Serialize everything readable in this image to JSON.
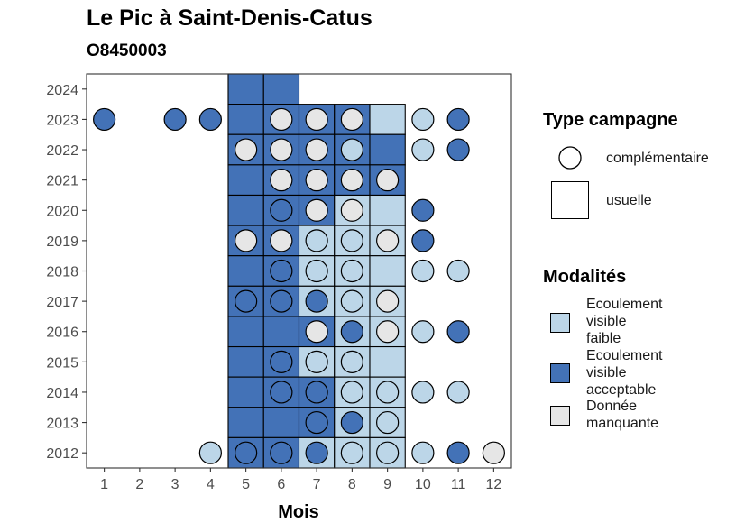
{
  "header": {
    "title": "Le Pic à Saint-Denis-Catus",
    "subtitle": "O8450003"
  },
  "legend": {
    "type_title": "Type campagne",
    "type_items": [
      {
        "label": "complémentaire",
        "shape": "circle"
      },
      {
        "label": "usuelle",
        "shape": "square"
      }
    ],
    "mod_title": "Modalités",
    "mod_items": [
      {
        "label": "Ecoulement\nvisible\nfaible",
        "key": "faible",
        "color": "#bcd6e8"
      },
      {
        "label": "Ecoulement\nvisible\nacceptable",
        "key": "acceptable",
        "color": "#4372b7"
      },
      {
        "label": "Donnée\nmanquante",
        "key": "manquante",
        "color": "#e6e6e6"
      }
    ]
  },
  "chart_data": {
    "type": "heatmap",
    "xlabel": "Mois",
    "ylabel": "",
    "x_ticks": [
      1,
      2,
      3,
      4,
      5,
      6,
      7,
      8,
      9,
      10,
      11,
      12
    ],
    "y_ticks": [
      2012,
      2013,
      2014,
      2015,
      2016,
      2017,
      2018,
      2019,
      2020,
      2021,
      2022,
      2023,
      2024
    ],
    "xlim": [
      0.5,
      12.5
    ],
    "ylim": [
      2011.5,
      2024.5
    ],
    "colors": {
      "faible": "#bcd6e8",
      "acceptable": "#4372b7",
      "manquante": "#e6e6e6"
    },
    "usuelle": [
      {
        "year": 2024,
        "month": 5,
        "value": "acceptable"
      },
      {
        "year": 2024,
        "month": 6,
        "value": "acceptable"
      },
      {
        "year": 2023,
        "month": 5,
        "value": "acceptable"
      },
      {
        "year": 2023,
        "month": 6,
        "value": "acceptable"
      },
      {
        "year": 2023,
        "month": 7,
        "value": "acceptable"
      },
      {
        "year": 2023,
        "month": 8,
        "value": "acceptable"
      },
      {
        "year": 2023,
        "month": 9,
        "value": "faible"
      },
      {
        "year": 2022,
        "month": 5,
        "value": "acceptable"
      },
      {
        "year": 2022,
        "month": 6,
        "value": "acceptable"
      },
      {
        "year": 2022,
        "month": 7,
        "value": "acceptable"
      },
      {
        "year": 2022,
        "month": 8,
        "value": "acceptable"
      },
      {
        "year": 2022,
        "month": 9,
        "value": "acceptable"
      },
      {
        "year": 2021,
        "month": 5,
        "value": "acceptable"
      },
      {
        "year": 2021,
        "month": 6,
        "value": "acceptable"
      },
      {
        "year": 2021,
        "month": 7,
        "value": "acceptable"
      },
      {
        "year": 2021,
        "month": 8,
        "value": "acceptable"
      },
      {
        "year": 2021,
        "month": 9,
        "value": "acceptable"
      },
      {
        "year": 2020,
        "month": 5,
        "value": "acceptable"
      },
      {
        "year": 2020,
        "month": 6,
        "value": "acceptable"
      },
      {
        "year": 2020,
        "month": 7,
        "value": "acceptable"
      },
      {
        "year": 2020,
        "month": 8,
        "value": "faible"
      },
      {
        "year": 2020,
        "month": 9,
        "value": "faible"
      },
      {
        "year": 2019,
        "month": 5,
        "value": "acceptable"
      },
      {
        "year": 2019,
        "month": 6,
        "value": "acceptable"
      },
      {
        "year": 2019,
        "month": 7,
        "value": "faible"
      },
      {
        "year": 2019,
        "month": 8,
        "value": "faible"
      },
      {
        "year": 2019,
        "month": 9,
        "value": "faible"
      },
      {
        "year": 2018,
        "month": 5,
        "value": "acceptable"
      },
      {
        "year": 2018,
        "month": 6,
        "value": "acceptable"
      },
      {
        "year": 2018,
        "month": 7,
        "value": "faible"
      },
      {
        "year": 2018,
        "month": 8,
        "value": "faible"
      },
      {
        "year": 2018,
        "month": 9,
        "value": "faible"
      },
      {
        "year": 2017,
        "month": 5,
        "value": "acceptable"
      },
      {
        "year": 2017,
        "month": 6,
        "value": "acceptable"
      },
      {
        "year": 2017,
        "month": 7,
        "value": "faible"
      },
      {
        "year": 2017,
        "month": 8,
        "value": "faible"
      },
      {
        "year": 2017,
        "month": 9,
        "value": "faible"
      },
      {
        "year": 2016,
        "month": 5,
        "value": "acceptable"
      },
      {
        "year": 2016,
        "month": 6,
        "value": "acceptable"
      },
      {
        "year": 2016,
        "month": 7,
        "value": "acceptable"
      },
      {
        "year": 2016,
        "month": 8,
        "value": "faible"
      },
      {
        "year": 2016,
        "month": 9,
        "value": "faible"
      },
      {
        "year": 2015,
        "month": 5,
        "value": "acceptable"
      },
      {
        "year": 2015,
        "month": 6,
        "value": "acceptable"
      },
      {
        "year": 2015,
        "month": 7,
        "value": "faible"
      },
      {
        "year": 2015,
        "month": 8,
        "value": "faible"
      },
      {
        "year": 2015,
        "month": 9,
        "value": "faible"
      },
      {
        "year": 2014,
        "month": 5,
        "value": "acceptable"
      },
      {
        "year": 2014,
        "month": 6,
        "value": "acceptable"
      },
      {
        "year": 2014,
        "month": 7,
        "value": "acceptable"
      },
      {
        "year": 2014,
        "month": 8,
        "value": "faible"
      },
      {
        "year": 2014,
        "month": 9,
        "value": "faible"
      },
      {
        "year": 2013,
        "month": 5,
        "value": "acceptable"
      },
      {
        "year": 2013,
        "month": 6,
        "value": "acceptable"
      },
      {
        "year": 2013,
        "month": 7,
        "value": "acceptable"
      },
      {
        "year": 2013,
        "month": 8,
        "value": "faible"
      },
      {
        "year": 2013,
        "month": 9,
        "value": "faible"
      },
      {
        "year": 2012,
        "month": 5,
        "value": "acceptable"
      },
      {
        "year": 2012,
        "month": 6,
        "value": "acceptable"
      },
      {
        "year": 2012,
        "month": 7,
        "value": "faible"
      },
      {
        "year": 2012,
        "month": 8,
        "value": "faible"
      },
      {
        "year": 2012,
        "month": 9,
        "value": "faible"
      }
    ],
    "complementaire": [
      {
        "year": 2023,
        "month": 1,
        "value": "acceptable"
      },
      {
        "year": 2023,
        "month": 3,
        "value": "acceptable"
      },
      {
        "year": 2023,
        "month": 4,
        "value": "acceptable"
      },
      {
        "year": 2023,
        "month": 6,
        "value": "manquante"
      },
      {
        "year": 2023,
        "month": 7,
        "value": "manquante"
      },
      {
        "year": 2023,
        "month": 8,
        "value": "manquante"
      },
      {
        "year": 2023,
        "month": 10,
        "value": "faible"
      },
      {
        "year": 2023,
        "month": 11,
        "value": "acceptable"
      },
      {
        "year": 2022,
        "month": 5,
        "value": "manquante"
      },
      {
        "year": 2022,
        "month": 6,
        "value": "manquante"
      },
      {
        "year": 2022,
        "month": 7,
        "value": "manquante"
      },
      {
        "year": 2022,
        "month": 8,
        "value": "faible"
      },
      {
        "year": 2022,
        "month": 10,
        "value": "faible"
      },
      {
        "year": 2022,
        "month": 11,
        "value": "acceptable"
      },
      {
        "year": 2021,
        "month": 6,
        "value": "manquante"
      },
      {
        "year": 2021,
        "month": 7,
        "value": "manquante"
      },
      {
        "year": 2021,
        "month": 8,
        "value": "manquante"
      },
      {
        "year": 2021,
        "month": 9,
        "value": "manquante"
      },
      {
        "year": 2020,
        "month": 6,
        "value": "acceptable"
      },
      {
        "year": 2020,
        "month": 7,
        "value": "manquante"
      },
      {
        "year": 2020,
        "month": 8,
        "value": "manquante"
      },
      {
        "year": 2020,
        "month": 10,
        "value": "acceptable"
      },
      {
        "year": 2019,
        "month": 5,
        "value": "manquante"
      },
      {
        "year": 2019,
        "month": 6,
        "value": "manquante"
      },
      {
        "year": 2019,
        "month": 7,
        "value": "faible"
      },
      {
        "year": 2019,
        "month": 8,
        "value": "faible"
      },
      {
        "year": 2019,
        "month": 9,
        "value": "manquante"
      },
      {
        "year": 2019,
        "month": 10,
        "value": "acceptable"
      },
      {
        "year": 2018,
        "month": 6,
        "value": "acceptable"
      },
      {
        "year": 2018,
        "month": 7,
        "value": "faible"
      },
      {
        "year": 2018,
        "month": 8,
        "value": "faible"
      },
      {
        "year": 2018,
        "month": 10,
        "value": "faible"
      },
      {
        "year": 2018,
        "month": 11,
        "value": "faible"
      },
      {
        "year": 2017,
        "month": 5,
        "value": "acceptable"
      },
      {
        "year": 2017,
        "month": 6,
        "value": "acceptable"
      },
      {
        "year": 2017,
        "month": 7,
        "value": "acceptable"
      },
      {
        "year": 2017,
        "month": 8,
        "value": "faible"
      },
      {
        "year": 2017,
        "month": 9,
        "value": "manquante"
      },
      {
        "year": 2016,
        "month": 7,
        "value": "manquante"
      },
      {
        "year": 2016,
        "month": 8,
        "value": "acceptable"
      },
      {
        "year": 2016,
        "month": 9,
        "value": "manquante"
      },
      {
        "year": 2016,
        "month": 10,
        "value": "faible"
      },
      {
        "year": 2016,
        "month": 11,
        "value": "acceptable"
      },
      {
        "year": 2015,
        "month": 6,
        "value": "acceptable"
      },
      {
        "year": 2015,
        "month": 7,
        "value": "faible"
      },
      {
        "year": 2015,
        "month": 8,
        "value": "faible"
      },
      {
        "year": 2014,
        "month": 6,
        "value": "acceptable"
      },
      {
        "year": 2014,
        "month": 7,
        "value": "acceptable"
      },
      {
        "year": 2014,
        "month": 8,
        "value": "faible"
      },
      {
        "year": 2014,
        "month": 9,
        "value": "faible"
      },
      {
        "year": 2014,
        "month": 10,
        "value": "faible"
      },
      {
        "year": 2014,
        "month": 11,
        "value": "faible"
      },
      {
        "year": 2013,
        "month": 7,
        "value": "acceptable"
      },
      {
        "year": 2013,
        "month": 8,
        "value": "acceptable"
      },
      {
        "year": 2013,
        "month": 9,
        "value": "faible"
      },
      {
        "year": 2012,
        "month": 4,
        "value": "faible"
      },
      {
        "year": 2012,
        "month": 5,
        "value": "acceptable"
      },
      {
        "year": 2012,
        "month": 6,
        "value": "acceptable"
      },
      {
        "year": 2012,
        "month": 7,
        "value": "acceptable"
      },
      {
        "year": 2012,
        "month": 8,
        "value": "faible"
      },
      {
        "year": 2012,
        "month": 9,
        "value": "faible"
      },
      {
        "year": 2012,
        "month": 10,
        "value": "faible"
      },
      {
        "year": 2012,
        "month": 11,
        "value": "acceptable"
      },
      {
        "year": 2012,
        "month": 12,
        "value": "manquante"
      }
    ]
  }
}
